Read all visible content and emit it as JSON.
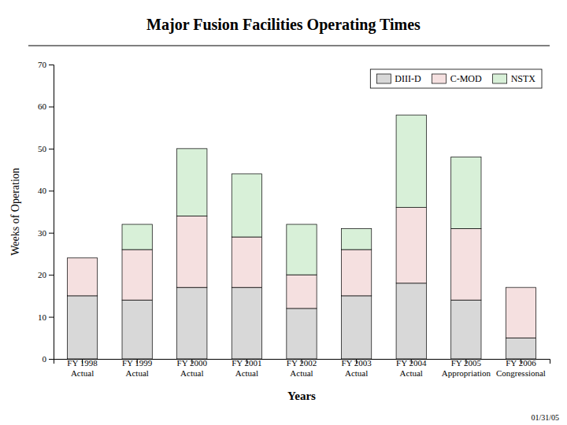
{
  "chart_data": {
    "type": "bar",
    "stacked": true,
    "title": "Major Fusion Facilities Operating Times",
    "xlabel": "Years",
    "ylabel": "Weeks of Operation",
    "categories": [
      "FY 1998\nActual",
      "FY 1999\nActual",
      "FY 2000\nActual",
      "FY 2001\nActual",
      "FY 2002\nActual",
      "FY 2003\nActual",
      "FY 2004\nActual",
      "FY 2005\nAppropriation",
      "FY 2006\nCongressional"
    ],
    "series": [
      {
        "name": "DIII-D",
        "color": "#d8d8d8",
        "values": [
          15,
          14,
          17,
          17,
          12,
          15,
          18,
          14,
          5
        ]
      },
      {
        "name": "C-MOD",
        "color": "#f5e0e0",
        "values": [
          9,
          12,
          17,
          12,
          8,
          11,
          18,
          17,
          12
        ]
      },
      {
        "name": "NSTX",
        "color": "#d8f0d8",
        "values": [
          0,
          6,
          16,
          15,
          12,
          5,
          22,
          17,
          0
        ]
      }
    ],
    "ylim": [
      0,
      70
    ],
    "yticks": [
      0,
      10,
      20,
      30,
      40,
      50,
      60,
      70
    ],
    "grid": false,
    "legend": "upper right",
    "annotations": [
      "01/31/05"
    ]
  }
}
